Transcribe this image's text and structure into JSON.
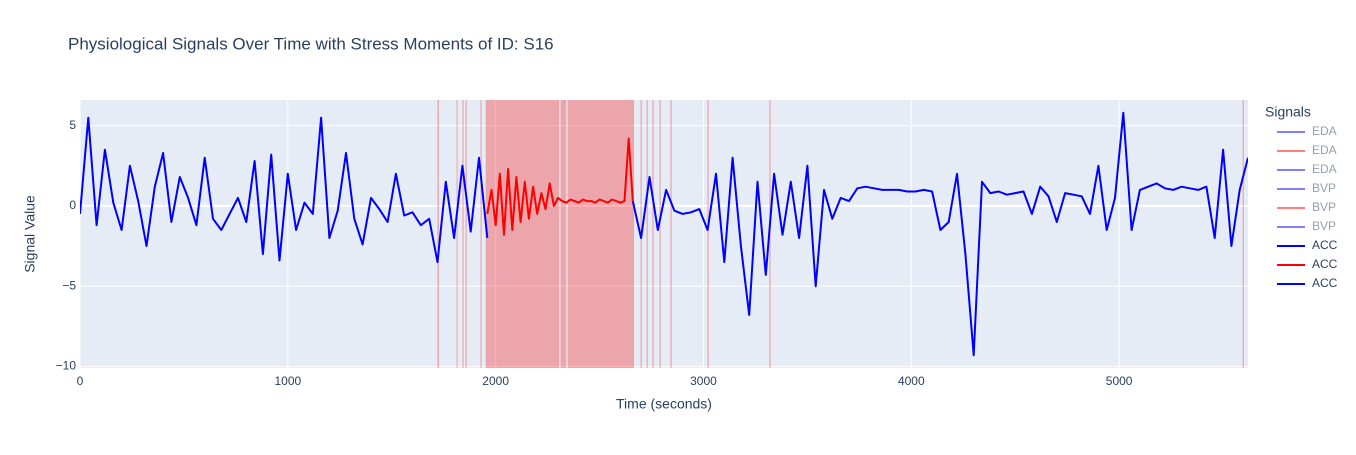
{
  "chart_data": {
    "type": "line",
    "title": "Physiological Signals Over Time with Stress Moments of ID: S16",
    "x_label": "Time (seconds)",
    "y_label": "Signal Value",
    "legend_title": "Signals",
    "legend_position": "right",
    "xlim": [
      0,
      5620
    ],
    "ylim": [
      -10.1,
      6.6
    ],
    "xticks": [
      0,
      1000,
      2000,
      3000,
      4000,
      5000
    ],
    "yticks": [
      {
        "value": -10,
        "label": "−10"
      },
      {
        "value": -5,
        "label": "−5"
      },
      0,
      5
    ],
    "grid": true,
    "stress_color": "rgba(255,0,0,0.3)",
    "stress_spans": [
      [
        1720,
        1727
      ],
      [
        1812,
        1817
      ],
      [
        1840,
        1846
      ],
      [
        1855,
        1861
      ],
      [
        1927,
        1933
      ],
      [
        1952,
        2306
      ],
      [
        2312,
        2340
      ],
      [
        2346,
        2666
      ],
      [
        2697,
        2703
      ],
      [
        2726,
        2732
      ],
      [
        2754,
        2760
      ],
      [
        2788,
        2794
      ],
      [
        2841,
        2847
      ],
      [
        3019,
        3025
      ],
      [
        3317,
        3323
      ],
      [
        5594,
        5600
      ]
    ],
    "series": [
      {
        "name": "EDA",
        "color": "#0000ff",
        "opacity": 0.5,
        "x": [],
        "values": []
      },
      {
        "name": "EDA",
        "color": "#ff0000",
        "opacity": 0.5,
        "x": [],
        "values": []
      },
      {
        "name": "EDA",
        "color": "#0000ff",
        "opacity": 0.5,
        "x": [],
        "values": []
      },
      {
        "name": "BVP",
        "color": "#0000ff",
        "opacity": 0.5,
        "x": [],
        "values": []
      },
      {
        "name": "BVP",
        "color": "#ff0000",
        "opacity": 0.5,
        "x": [],
        "values": []
      },
      {
        "name": "BVP",
        "color": "#0000ff",
        "opacity": 0.5,
        "x": [],
        "values": []
      },
      {
        "name": "ACC",
        "color": "#0000ff",
        "opacity": 1,
        "x": [
          0,
          40,
          80,
          120,
          160,
          200,
          240,
          280,
          320,
          360,
          400,
          440,
          480,
          520,
          560,
          600,
          640,
          680,
          720,
          760,
          800,
          840,
          880,
          920,
          960,
          1000,
          1040,
          1080,
          1120,
          1160,
          1200,
          1240,
          1280,
          1320,
          1360,
          1400,
          1440,
          1480,
          1520,
          1560,
          1600,
          1640,
          1680,
          1720,
          1760,
          1800,
          1840,
          1880,
          1920,
          1960
        ],
        "values": [
          -0.5,
          5.5,
          -1.2,
          3.5,
          0.2,
          -1.5,
          2.5,
          0.3,
          -2.5,
          1.2,
          3.3,
          -1.0,
          1.8,
          0.5,
          -1.2,
          3.0,
          -0.8,
          -1.5,
          -0.5,
          0.5,
          -1.0,
          2.8,
          -3.0,
          3.2,
          -3.4,
          2.0,
          -1.5,
          0.2,
          -0.5,
          5.5,
          -2.0,
          -0.3,
          3.3,
          -0.8,
          -2.4,
          0.5,
          -0.2,
          -1.0,
          2.0,
          -0.6,
          -0.4,
          -1.2,
          -0.8,
          -3.5,
          1.5,
          -2.0,
          2.5,
          -1.6,
          3.0,
          -2.0
        ]
      },
      {
        "name": "ACC",
        "color": "#ff0000",
        "opacity": 1,
        "x": [
          1960,
          1980,
          2000,
          2020,
          2040,
          2060,
          2080,
          2100,
          2120,
          2140,
          2160,
          2180,
          2200,
          2220,
          2240,
          2260,
          2280,
          2300,
          2320,
          2340,
          2360,
          2380,
          2400,
          2420,
          2440,
          2460,
          2480,
          2500,
          2520,
          2540,
          2560,
          2580,
          2600,
          2620,
          2640,
          2660
        ],
        "values": [
          -0.5,
          1.0,
          -1.2,
          2.0,
          -1.8,
          2.3,
          -1.5,
          1.8,
          -1.0,
          1.5,
          -0.8,
          1.2,
          -0.5,
          0.8,
          -0.2,
          1.4,
          0.0,
          0.5,
          0.3,
          0.2,
          0.4,
          0.3,
          0.2,
          0.4,
          0.3,
          0.3,
          0.2,
          0.4,
          0.3,
          0.2,
          0.4,
          0.3,
          0.2,
          0.3,
          4.2,
          0.3
        ]
      },
      {
        "name": "ACC",
        "color": "#0000ff",
        "opacity": 1,
        "x": [
          2660,
          2700,
          2740,
          2780,
          2820,
          2860,
          2900,
          2940,
          2980,
          3020,
          3060,
          3100,
          3140,
          3180,
          3220,
          3260,
          3300,
          3340,
          3380,
          3420,
          3460,
          3500,
          3540,
          3580,
          3620,
          3660,
          3700,
          3740,
          3780,
          3820,
          3860,
          3900,
          3940,
          3980,
          4020,
          4060,
          4100,
          4140,
          4180,
          4220,
          4260,
          4300,
          4340,
          4380,
          4420,
          4460,
          4500,
          4540,
          4580,
          4620,
          4660,
          4700,
          4740,
          4780,
          4820,
          4860,
          4900,
          4940,
          4980,
          5020,
          5060,
          5100,
          5140,
          5180,
          5220,
          5260,
          5300,
          5340,
          5380,
          5420,
          5460,
          5500,
          5540,
          5580,
          5620
        ],
        "values": [
          0.3,
          -2.0,
          1.8,
          -1.5,
          1.0,
          -0.3,
          -0.5,
          -0.4,
          -0.2,
          -1.5,
          2.0,
          -3.5,
          3.0,
          -2.5,
          -6.8,
          1.5,
          -4.3,
          2.0,
          -1.8,
          1.5,
          -2.0,
          2.5,
          -5.0,
          1.0,
          -0.8,
          0.5,
          0.3,
          1.1,
          1.2,
          1.1,
          1.0,
          1.0,
          1.0,
          0.9,
          0.9,
          1.0,
          0.9,
          -1.5,
          -1.0,
          2.0,
          -3.0,
          -9.3,
          1.5,
          0.8,
          0.9,
          0.7,
          0.8,
          0.9,
          -0.5,
          1.2,
          0.6,
          -1.0,
          0.8,
          0.7,
          0.6,
          -0.5,
          2.5,
          -1.5,
          0.5,
          5.8,
          -1.5,
          1.0,
          1.2,
          1.4,
          1.1,
          1.0,
          1.2,
          1.1,
          1.0,
          1.2,
          -2.0,
          3.5,
          -2.5,
          1.0,
          3.0
        ]
      }
    ]
  }
}
